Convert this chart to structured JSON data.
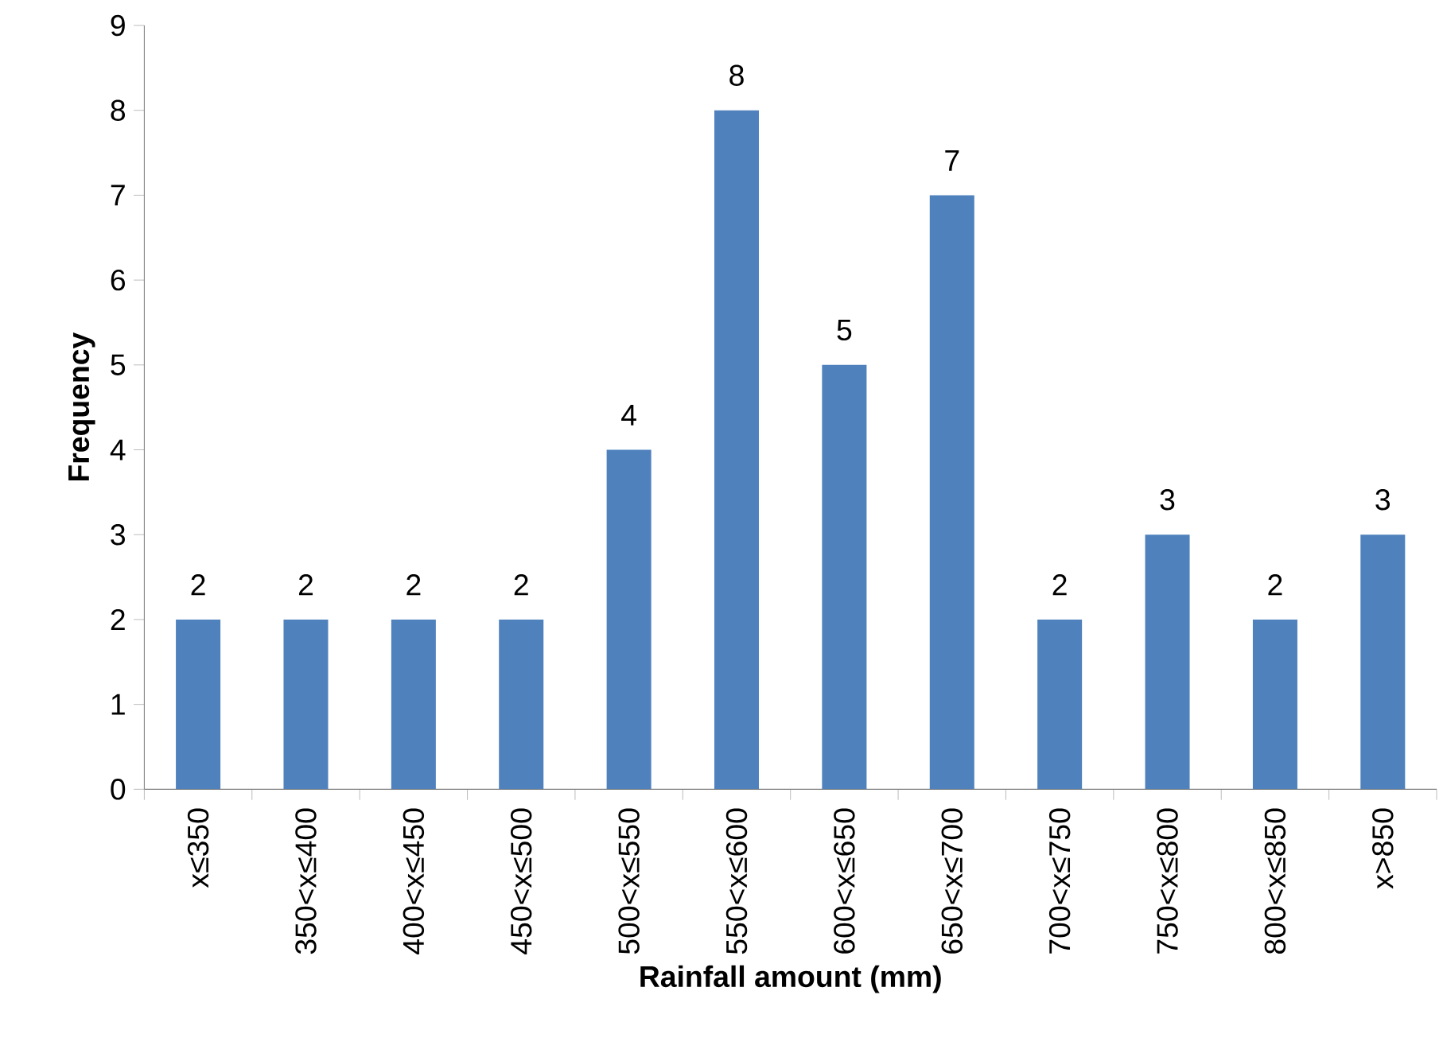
{
  "chart_data": {
    "type": "bar",
    "xlabel": "Rainfall amount (mm)",
    "ylabel": "Frequency",
    "categories": [
      "x≤350",
      "350<x≤400",
      "400<x≤450",
      "450<x≤500",
      "500<x≤550",
      "550<x≤600",
      "600<x≤650",
      "650<x≤700",
      "700<x≤750",
      "750<x≤800",
      "800<x≤850",
      "x>850"
    ],
    "values": [
      2,
      2,
      2,
      2,
      4,
      8,
      5,
      7,
      2,
      3,
      2,
      3
    ],
    "color": "#4f81bd",
    "ylim": [
      0,
      9
    ],
    "yticks": [
      0,
      1,
      2,
      3,
      4,
      5,
      6,
      7,
      8,
      9
    ],
    "grid": false,
    "data_labels": true
  }
}
